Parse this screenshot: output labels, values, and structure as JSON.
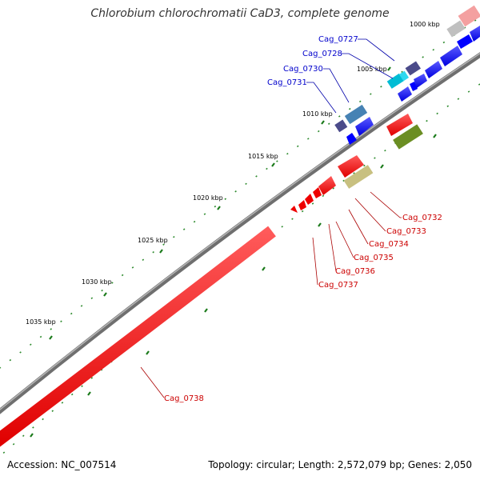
{
  "title": "Chlorobium chlorochromatii CaD3, complete genome",
  "footer": {
    "accession": "Accession: NC_007514",
    "summary": "Topology: circular; Length: 2,572,079 bp; Genes: 2,050"
  },
  "colors": {
    "forward_gene": "#0000ff",
    "reverse_gene": "#ff0000",
    "forward_label": "#0000cc",
    "reverse_label": "#cc0000",
    "backbone": "#808080",
    "tick": "#006400"
  },
  "kbp_labels": [
    "1000 kbp",
    "1005 kbp",
    "1010 kbp",
    "1015 kbp",
    "1020 kbp",
    "1025 kbp",
    "1030 kbp",
    "1035 kbp"
  ],
  "forward_labels": [
    "Cag_0727",
    "Cag_0728",
    "Cag_0730",
    "Cag_0731"
  ],
  "reverse_labels": [
    "Cag_0732",
    "Cag_0733",
    "Cag_0734",
    "Cag_0735",
    "Cag_0736",
    "Cag_0737",
    "Cag_0738"
  ]
}
